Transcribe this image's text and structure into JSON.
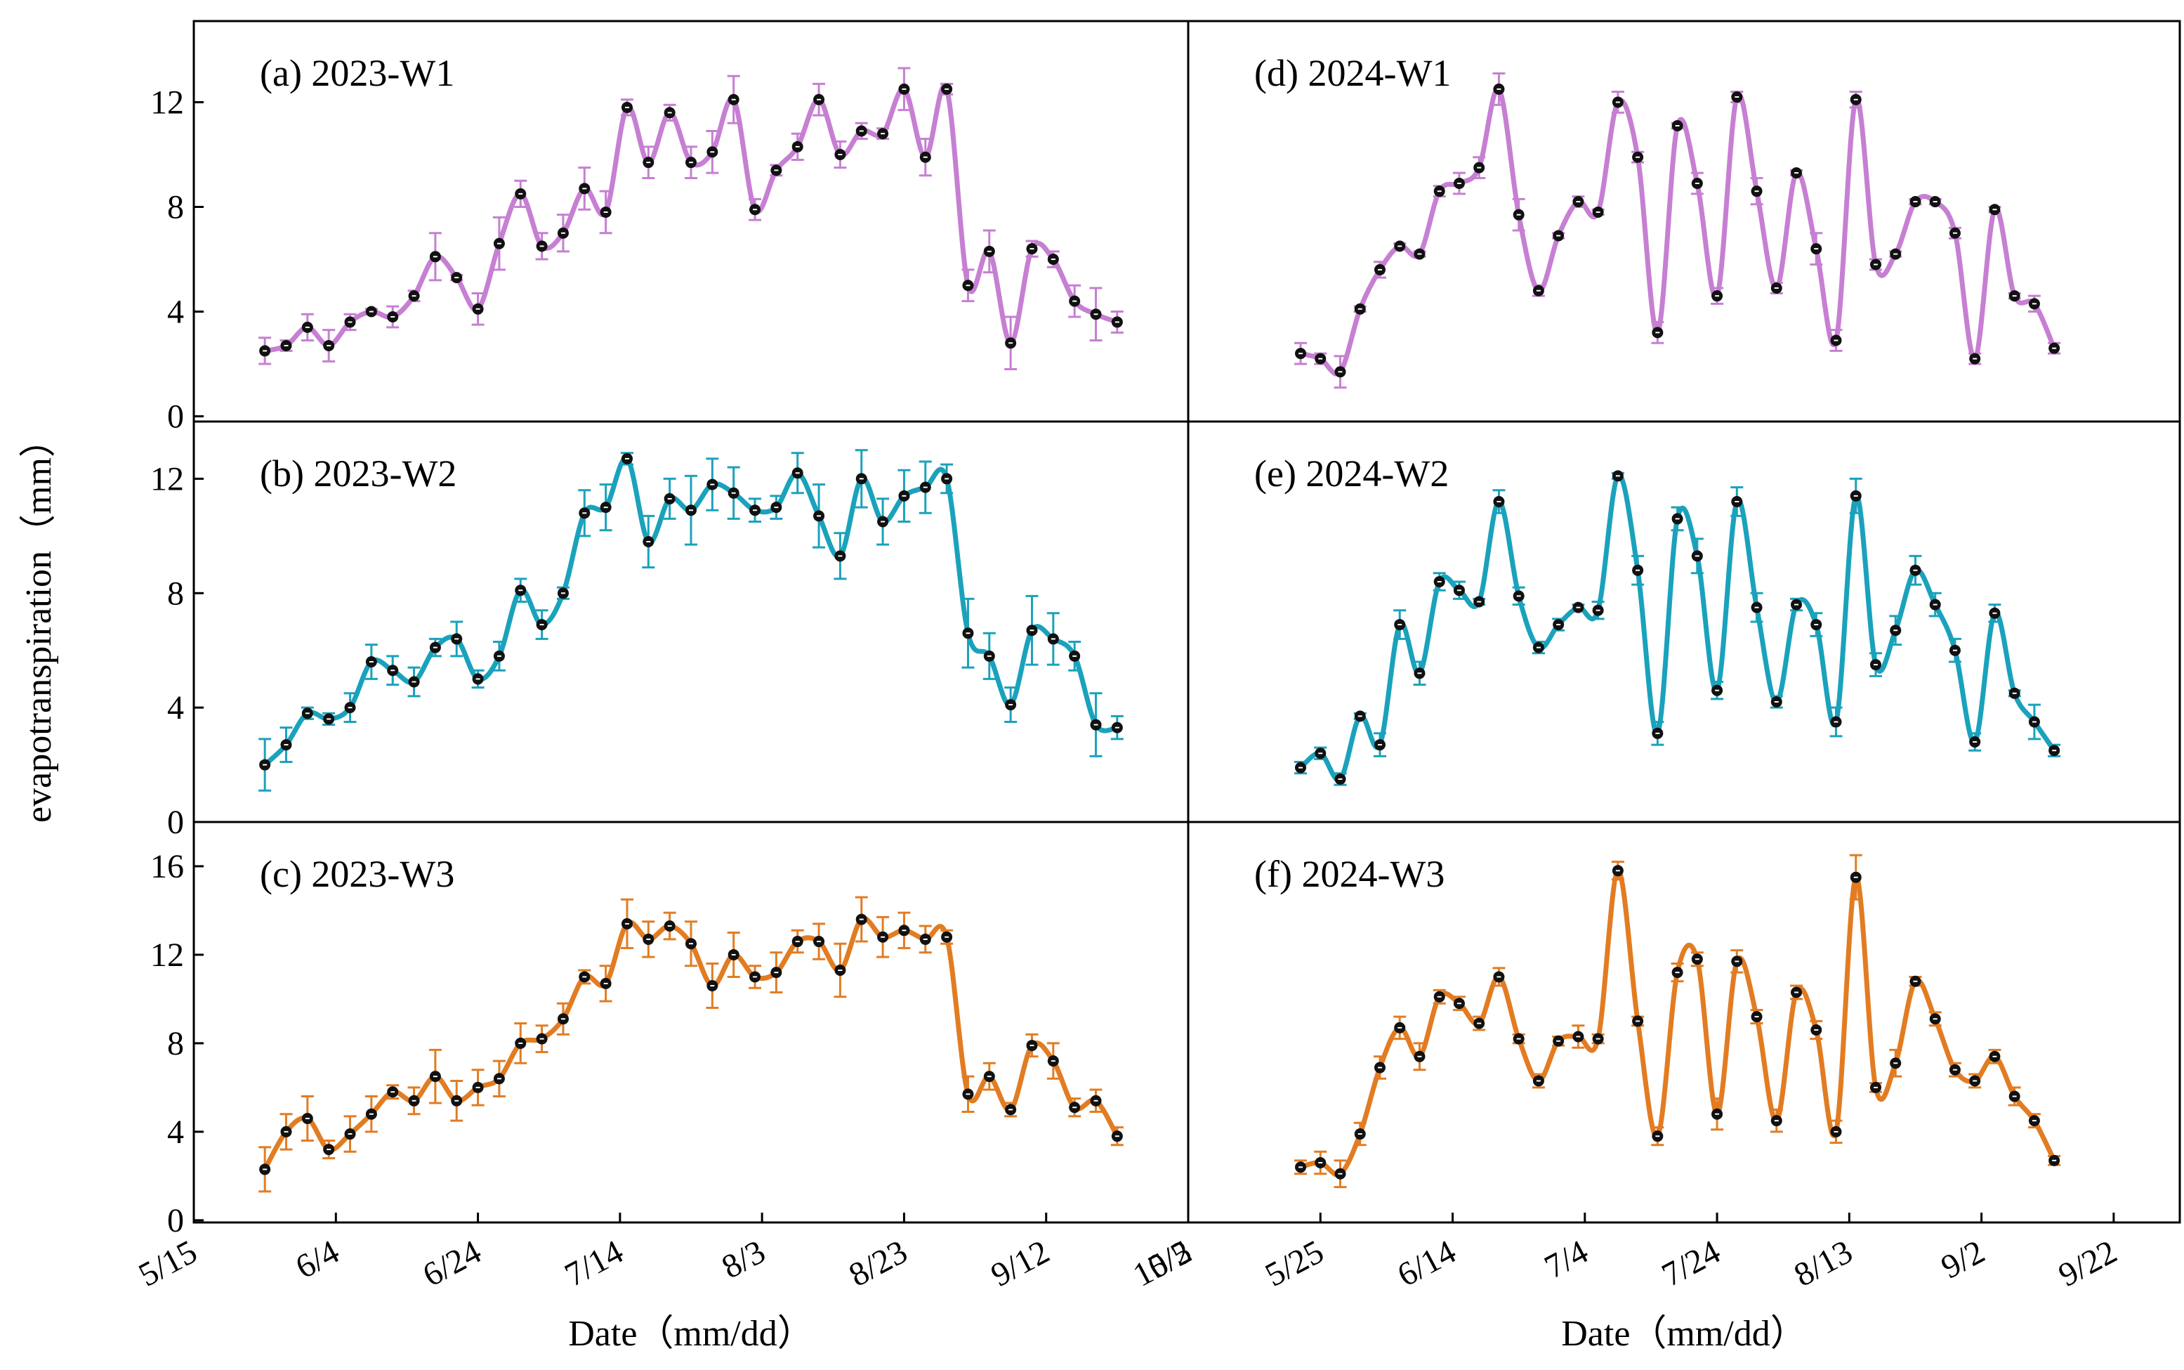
{
  "chart_data": [
    {
      "type": "line",
      "title": "(a) 2023-W1",
      "x": [
        "5/25",
        "5/28",
        "5/31",
        "6/3",
        "6/6",
        "6/9",
        "6/12",
        "6/15",
        "6/18",
        "6/21",
        "6/24",
        "6/27",
        "6/30",
        "7/3",
        "7/6",
        "7/9",
        "7/12",
        "7/15",
        "7/18",
        "7/21",
        "7/24",
        "7/27",
        "7/30",
        "8/2",
        "8/5",
        "8/8",
        "8/11",
        "8/14",
        "8/17",
        "8/20",
        "8/23",
        "8/26",
        "8/29",
        "9/1",
        "9/4",
        "9/7",
        "9/10",
        "9/13",
        "9/16",
        "9/19",
        "9/22"
      ],
      "values": [
        2.5,
        2.7,
        3.4,
        2.7,
        3.6,
        4.0,
        3.8,
        4.6,
        6.1,
        5.3,
        4.1,
        6.6,
        8.5,
        6.5,
        7.0,
        8.7,
        7.8,
        11.8,
        9.7,
        11.6,
        9.7,
        10.1,
        12.1,
        7.9,
        9.4,
        10.3,
        12.1,
        10.0,
        10.9,
        10.8,
        12.5,
        9.9,
        12.5,
        5.0,
        6.3,
        2.8,
        6.4,
        6.0,
        4.4,
        3.9,
        3.6
      ],
      "errors": [
        0.5,
        0.2,
        0.5,
        0.6,
        0.3,
        0.1,
        0.4,
        0.2,
        0.9,
        0.1,
        0.6,
        1.0,
        0.5,
        0.5,
        0.7,
        0.8,
        0.8,
        0.3,
        0.6,
        0.3,
        0.6,
        0.8,
        0.9,
        0.4,
        0.2,
        0.5,
        0.6,
        0.5,
        0.3,
        0.2,
        0.8,
        0.7,
        0.2,
        0.6,
        0.8,
        1.0,
        0.3,
        0.3,
        0.6,
        1.0,
        0.4
      ],
      "color": "#c67fd2",
      "xlim": [
        "5/15",
        "10/2"
      ],
      "ylim": [
        -0.2,
        15.1
      ],
      "yticks": [
        0,
        4,
        8,
        12
      ]
    },
    {
      "type": "line",
      "title": "(b) 2023-W2",
      "ylabel": "evapotranspiration（mm）",
      "x": [
        "5/25",
        "5/28",
        "5/31",
        "6/3",
        "6/6",
        "6/9",
        "6/12",
        "6/15",
        "6/18",
        "6/21",
        "6/24",
        "6/27",
        "6/30",
        "7/3",
        "7/6",
        "7/9",
        "7/12",
        "7/15",
        "7/18",
        "7/21",
        "7/24",
        "7/27",
        "7/30",
        "8/2",
        "8/5",
        "8/8",
        "8/11",
        "8/14",
        "8/17",
        "8/20",
        "8/23",
        "8/26",
        "8/29",
        "9/1",
        "9/4",
        "9/7",
        "9/10",
        "9/13",
        "9/16",
        "9/19",
        "9/22"
      ],
      "values": [
        2.0,
        2.7,
        3.8,
        3.6,
        4.0,
        5.6,
        5.3,
        4.9,
        6.1,
        6.4,
        5.0,
        5.8,
        8.1,
        6.9,
        8.0,
        10.8,
        11.0,
        12.7,
        9.8,
        11.3,
        10.9,
        11.8,
        11.5,
        10.9,
        11.0,
        12.2,
        10.7,
        9.3,
        12.0,
        10.5,
        11.4,
        11.7,
        12.0,
        6.6,
        5.8,
        4.1,
        6.7,
        6.4,
        5.8,
        3.4,
        3.3
      ],
      "errors": [
        0.9,
        0.6,
        0.2,
        0.2,
        0.5,
        0.6,
        0.5,
        0.5,
        0.3,
        0.6,
        0.3,
        0.5,
        0.4,
        0.5,
        0.2,
        0.8,
        0.8,
        0.2,
        0.9,
        0.7,
        1.2,
        0.9,
        0.9,
        0.4,
        0.4,
        0.7,
        1.1,
        0.8,
        1.0,
        0.8,
        0.9,
        0.9,
        0.5,
        1.2,
        0.8,
        0.6,
        1.2,
        0.9,
        0.5,
        1.1,
        0.4
      ],
      "color": "#1aa2bc",
      "xlim": [
        "5/15",
        "10/2"
      ],
      "ylim": [
        0,
        14
      ],
      "yticks": [
        0,
        4,
        8,
        12
      ]
    },
    {
      "type": "line",
      "title": "(c) 2023-W3",
      "xlabel": "Date（mm/dd）",
      "x": [
        "5/25",
        "5/28",
        "5/31",
        "6/3",
        "6/6",
        "6/9",
        "6/12",
        "6/15",
        "6/18",
        "6/21",
        "6/24",
        "6/27",
        "6/30",
        "7/3",
        "7/6",
        "7/9",
        "7/12",
        "7/15",
        "7/18",
        "7/21",
        "7/24",
        "7/27",
        "7/30",
        "8/2",
        "8/5",
        "8/8",
        "8/11",
        "8/14",
        "8/17",
        "8/20",
        "8/23",
        "8/26",
        "8/29",
        "9/1",
        "9/4",
        "9/7",
        "9/10",
        "9/13",
        "9/16",
        "9/19",
        "9/22"
      ],
      "values": [
        2.3,
        4.0,
        4.6,
        3.2,
        3.9,
        4.8,
        5.8,
        5.4,
        6.5,
        5.4,
        6.0,
        6.4,
        8.0,
        8.2,
        9.1,
        11.0,
        10.7,
        13.4,
        12.7,
        13.3,
        12.5,
        10.6,
        12.0,
        11.0,
        11.2,
        12.6,
        12.6,
        11.3,
        13.6,
        12.8,
        13.1,
        12.7,
        12.8,
        5.7,
        6.5,
        5.0,
        7.9,
        7.2,
        5.1,
        5.4,
        3.8
      ],
      "errors": [
        1.0,
        0.8,
        1.0,
        0.4,
        0.8,
        0.8,
        0.3,
        0.6,
        1.2,
        0.9,
        0.8,
        0.8,
        0.9,
        0.6,
        0.7,
        0.3,
        0.8,
        1.1,
        0.8,
        0.6,
        1.0,
        1.0,
        1.0,
        0.5,
        0.9,
        0.5,
        0.8,
        1.2,
        1.0,
        0.9,
        0.8,
        0.6,
        0.3,
        0.8,
        0.6,
        0.3,
        0.5,
        0.8,
        0.4,
        0.5,
        0.4
      ],
      "color": "#e27c22",
      "xlim": [
        "5/15",
        "10/2"
      ],
      "ylim": [
        -0.1,
        18
      ],
      "yticks": [
        0,
        4,
        8,
        12,
        16
      ],
      "xticks": [
        "5/15",
        "6/4",
        "6/24",
        "7/14",
        "8/3",
        "8/23",
        "9/12",
        "10/2"
      ]
    },
    {
      "type": "line",
      "title": "(d) 2024-W1",
      "x": [
        "5/22",
        "5/25",
        "5/28",
        "5/31",
        "6/3",
        "6/6",
        "6/9",
        "6/12",
        "6/15",
        "6/18",
        "6/21",
        "6/24",
        "6/27",
        "6/30",
        "7/3",
        "7/6",
        "7/9",
        "7/12",
        "7/15",
        "7/18",
        "7/21",
        "7/24",
        "7/27",
        "7/30",
        "8/2",
        "8/5",
        "8/8",
        "8/11",
        "8/14",
        "8/17",
        "8/20",
        "8/23",
        "8/26",
        "8/29",
        "9/1",
        "9/4",
        "9/7",
        "9/10",
        "9/13"
      ],
      "values": [
        2.4,
        2.2,
        1.7,
        4.1,
        5.6,
        6.5,
        6.2,
        8.6,
        8.9,
        9.5,
        12.5,
        7.7,
        4.8,
        6.9,
        8.2,
        7.8,
        12.0,
        9.9,
        3.2,
        11.1,
        8.9,
        4.6,
        12.2,
        8.6,
        4.9,
        9.3,
        6.4,
        2.9,
        12.1,
        5.8,
        6.2,
        8.2,
        8.2,
        7.0,
        2.2,
        7.9,
        4.6,
        4.3,
        2.6
      ],
      "errors": [
        0.4,
        0.2,
        0.6,
        0.1,
        0.3,
        0.1,
        0.1,
        0.2,
        0.4,
        0.4,
        0.6,
        0.6,
        0.2,
        0.1,
        0.2,
        0.1,
        0.4,
        0.2,
        0.4,
        0.1,
        0.4,
        0.3,
        0.2,
        0.5,
        0.2,
        0.1,
        0.6,
        0.4,
        0.3,
        0.2,
        0.1,
        0.1,
        0.1,
        0.2,
        0.2,
        0.1,
        0.1,
        0.3,
        0.2
      ],
      "color": "#c67fd2",
      "xlim": [
        "5/5",
        "10/2"
      ],
      "ylim": [
        -0.2,
        15.1
      ]
    },
    {
      "type": "line",
      "title": "(e) 2024-W2",
      "x": [
        "5/22",
        "5/25",
        "5/28",
        "5/31",
        "6/3",
        "6/6",
        "6/9",
        "6/12",
        "6/15",
        "6/18",
        "6/21",
        "6/24",
        "6/27",
        "6/30",
        "7/3",
        "7/6",
        "7/9",
        "7/12",
        "7/15",
        "7/18",
        "7/21",
        "7/24",
        "7/27",
        "7/30",
        "8/2",
        "8/5",
        "8/8",
        "8/11",
        "8/14",
        "8/17",
        "8/20",
        "8/23",
        "8/26",
        "8/29",
        "9/1",
        "9/4",
        "9/7",
        "9/10",
        "9/13"
      ],
      "values": [
        1.9,
        2.4,
        1.5,
        3.7,
        2.7,
        6.9,
        5.2,
        8.4,
        8.1,
        7.7,
        11.2,
        7.9,
        6.1,
        6.9,
        7.5,
        7.4,
        12.1,
        8.8,
        3.1,
        10.6,
        9.3,
        4.6,
        11.2,
        7.5,
        4.2,
        7.6,
        6.9,
        3.5,
        11.4,
        5.5,
        6.7,
        8.8,
        7.6,
        6.0,
        2.8,
        7.3,
        4.5,
        3.5,
        2.5
      ],
      "errors": [
        0.2,
        0.2,
        0.2,
        0.1,
        0.4,
        0.5,
        0.4,
        0.3,
        0.3,
        0.1,
        0.4,
        0.3,
        0.2,
        0.2,
        0.1,
        0.3,
        0.1,
        0.5,
        0.4,
        0.4,
        0.6,
        0.3,
        0.5,
        0.5,
        0.2,
        0.2,
        0.4,
        0.5,
        0.6,
        0.4,
        0.5,
        0.5,
        0.4,
        0.4,
        0.3,
        0.3,
        0.1,
        0.6,
        0.2
      ],
      "color": "#1aa2bc",
      "xlim": [
        "5/5",
        "10/2"
      ],
      "ylim": [
        0,
        14
      ]
    },
    {
      "type": "line",
      "title": "(f) 2024-W3",
      "xlabel": "Date（mm/dd）",
      "x": [
        "5/22",
        "5/25",
        "5/28",
        "5/31",
        "6/3",
        "6/6",
        "6/9",
        "6/12",
        "6/15",
        "6/18",
        "6/21",
        "6/24",
        "6/27",
        "6/30",
        "7/3",
        "7/6",
        "7/9",
        "7/12",
        "7/15",
        "7/18",
        "7/21",
        "7/24",
        "7/27",
        "7/30",
        "8/2",
        "8/5",
        "8/8",
        "8/11",
        "8/14",
        "8/17",
        "8/20",
        "8/23",
        "8/26",
        "8/29",
        "9/1",
        "9/4",
        "9/7",
        "9/10",
        "9/13"
      ],
      "values": [
        2.4,
        2.6,
        2.1,
        3.9,
        6.9,
        8.7,
        7.4,
        10.1,
        9.8,
        8.9,
        11.0,
        8.2,
        6.3,
        8.1,
        8.3,
        8.2,
        15.8,
        9.0,
        3.8,
        11.2,
        11.8,
        4.8,
        11.7,
        9.2,
        4.5,
        10.3,
        8.6,
        4.0,
        15.5,
        6.0,
        7.1,
        10.8,
        9.1,
        6.8,
        6.3,
        7.4,
        5.6,
        4.5,
        2.7
      ],
      "errors": [
        0.3,
        0.5,
        0.6,
        0.5,
        0.5,
        0.5,
        0.6,
        0.3,
        0.3,
        0.3,
        0.4,
        0.2,
        0.3,
        0.2,
        0.5,
        0.2,
        0.4,
        0.2,
        0.4,
        0.4,
        0.3,
        0.7,
        0.5,
        0.3,
        0.5,
        0.3,
        0.4,
        0.5,
        1.0,
        0.2,
        0.6,
        0.2,
        0.3,
        0.3,
        0.3,
        0.3,
        0.4,
        0.3,
        0.2
      ],
      "color": "#e27c22",
      "xlim": [
        "5/5",
        "10/2"
      ],
      "ylim": [
        -0.1,
        18
      ],
      "xticks": [
        "5/5",
        "5/25",
        "6/14",
        "7/4",
        "7/24",
        "8/13",
        "9/2",
        "9/22"
      ]
    }
  ]
}
